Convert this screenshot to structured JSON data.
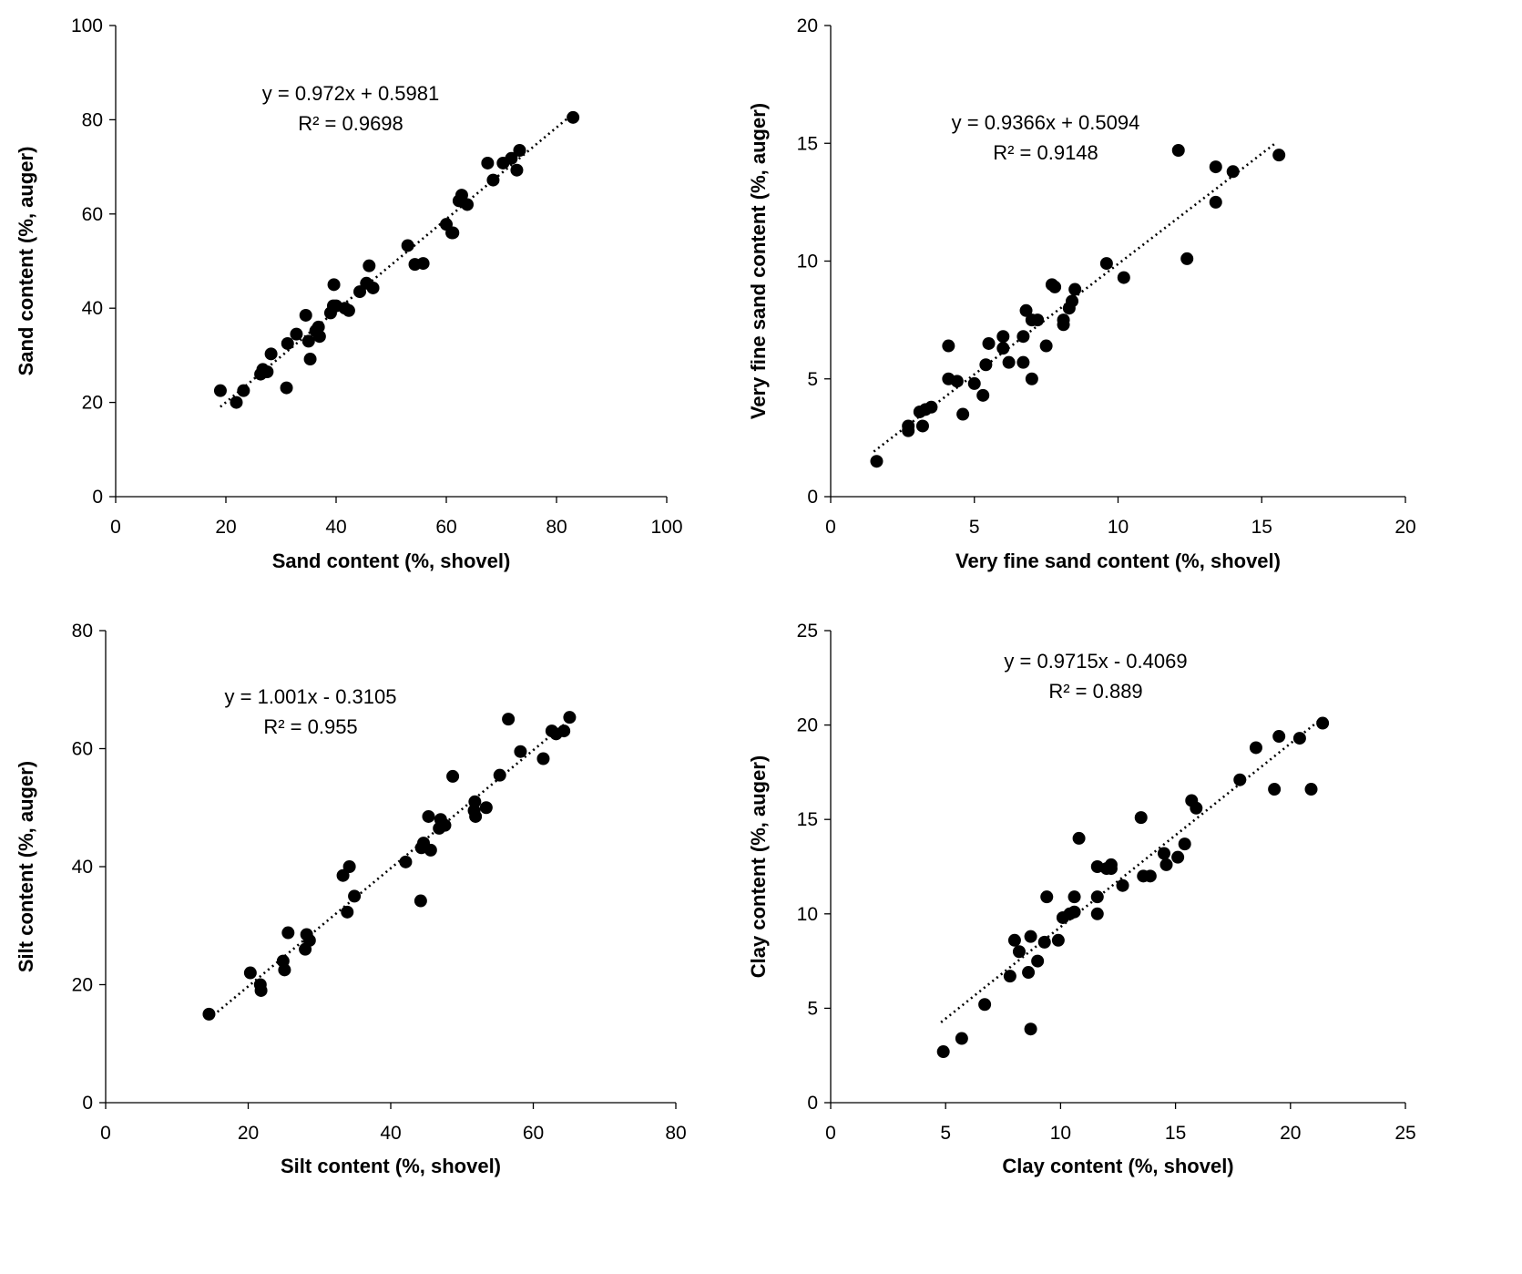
{
  "chart_data": [
    {
      "type": "scatter",
      "xlabel": "Sand content (%, shovel)",
      "ylabel": "Sand content (%, auger)",
      "xlim": [
        0,
        100
      ],
      "ylim": [
        0,
        100
      ],
      "xticks": [
        0,
        20,
        40,
        60,
        80,
        100
      ],
      "yticks": [
        0,
        20,
        40,
        60,
        80,
        100
      ],
      "equation": "y = 0.972x + 0.5981",
      "r2": "R² = 0.9698",
      "trendline": {
        "slope": 0.972,
        "intercept": 0.5981,
        "x_range": [
          19,
          83
        ]
      },
      "points": [
        [
          19,
          22.5
        ],
        [
          21.9,
          20
        ],
        [
          23.2,
          22.5
        ],
        [
          26.3,
          26
        ],
        [
          26.7,
          27
        ],
        [
          27.5,
          26.5
        ],
        [
          28.2,
          30.3
        ],
        [
          31.2,
          32.5
        ],
        [
          31.0,
          23.1
        ],
        [
          32.8,
          34.5
        ],
        [
          34.5,
          38.5
        ],
        [
          35.0,
          33.0
        ],
        [
          35.3,
          29.2
        ],
        [
          36.3,
          35.2
        ],
        [
          37.0,
          34.0
        ],
        [
          36.8,
          36.0
        ],
        [
          39.5,
          40.5
        ],
        [
          39.0,
          39.0
        ],
        [
          40.0,
          40.5
        ],
        [
          39.6,
          45.0
        ],
        [
          41.6,
          40.0
        ],
        [
          42.3,
          39.5
        ],
        [
          44.3,
          43.5
        ],
        [
          45.5,
          45.3
        ],
        [
          46.0,
          49.0
        ],
        [
          46.7,
          44.3
        ],
        [
          53.0,
          53.3
        ],
        [
          54.3,
          49.3
        ],
        [
          55.8,
          49.5
        ],
        [
          60.0,
          57.8
        ],
        [
          61.0,
          56.0
        ],
        [
          61.2,
          56.0
        ],
        [
          62.3,
          62.8
        ],
        [
          62.8,
          64.0
        ],
        [
          63.8,
          62.0
        ],
        [
          67.5,
          70.8
        ],
        [
          68.5,
          67.2
        ],
        [
          70.3,
          70.8
        ],
        [
          71.8,
          71.8
        ],
        [
          72.8,
          69.3
        ],
        [
          73.3,
          73.5
        ],
        [
          83.0,
          80.5
        ]
      ]
    },
    {
      "type": "scatter",
      "xlabel": "Very fine sand content (%, shovel)",
      "ylabel": "Very fine sand content (%, auger)",
      "xlim": [
        0,
        20
      ],
      "ylim": [
        0,
        20
      ],
      "xticks": [
        0,
        5,
        10,
        15,
        20
      ],
      "yticks": [
        0,
        5,
        10,
        15,
        20
      ],
      "equation": "y = 0.9366x + 0.5094",
      "r2": "R² = 0.9148",
      "trendline": {
        "slope": 0.9366,
        "intercept": 0.5094,
        "x_range": [
          1.5,
          15.5
        ]
      },
      "points": [
        [
          1.6,
          1.5
        ],
        [
          2.7,
          2.8
        ],
        [
          2.7,
          3.0
        ],
        [
          3.1,
          3.6
        ],
        [
          3.2,
          3.0
        ],
        [
          3.3,
          3.7
        ],
        [
          3.5,
          3.8
        ],
        [
          4.1,
          6.4
        ],
        [
          4.1,
          5.0
        ],
        [
          4.4,
          4.9
        ],
        [
          4.6,
          3.5
        ],
        [
          5.0,
          4.8
        ],
        [
          5.3,
          4.3
        ],
        [
          5.4,
          5.6
        ],
        [
          5.5,
          6.5
        ],
        [
          6.0,
          6.3
        ],
        [
          6.0,
          6.8
        ],
        [
          6.2,
          5.7
        ],
        [
          6.7,
          6.8
        ],
        [
          6.7,
          5.7
        ],
        [
          6.8,
          7.9
        ],
        [
          7.0,
          5.0
        ],
        [
          7.0,
          7.5
        ],
        [
          7.2,
          7.5
        ],
        [
          7.5,
          6.4
        ],
        [
          7.7,
          9.0
        ],
        [
          7.8,
          8.9
        ],
        [
          8.1,
          7.3
        ],
        [
          8.1,
          7.5
        ],
        [
          8.3,
          8.0
        ],
        [
          8.4,
          8.3
        ],
        [
          8.5,
          8.8
        ],
        [
          9.6,
          9.9
        ],
        [
          10.2,
          9.3
        ],
        [
          12.1,
          14.7
        ],
        [
          12.4,
          10.1
        ],
        [
          13.4,
          14.0
        ],
        [
          13.4,
          12.5
        ],
        [
          14.0,
          13.8
        ],
        [
          15.6,
          14.5
        ]
      ]
    },
    {
      "type": "scatter",
      "xlabel": "Silt content (%, shovel)",
      "ylabel": "Silt content (%, auger)",
      "xlim": [
        0,
        80
      ],
      "ylim": [
        0,
        80
      ],
      "xticks": [
        0,
        20,
        40,
        60,
        80
      ],
      "yticks": [
        0,
        20,
        40,
        60,
        80
      ],
      "equation": "y = 1.001x - 0.3105",
      "r2": "R² = 0.955",
      "trendline": {
        "slope": 1.001,
        "intercept": -0.3105,
        "x_range": [
          14.5,
          65
        ]
      },
      "points": [
        [
          14.5,
          15.0
        ],
        [
          20.3,
          22.0
        ],
        [
          21.7,
          20.0
        ],
        [
          21.8,
          19.0
        ],
        [
          24.9,
          24.0
        ],
        [
          25.1,
          22.5
        ],
        [
          25.6,
          28.8
        ],
        [
          28.0,
          26.0
        ],
        [
          28.2,
          28.5
        ],
        [
          28.6,
          27.5
        ],
        [
          33.3,
          38.5
        ],
        [
          33.9,
          32.3
        ],
        [
          34.2,
          40.0
        ],
        [
          34.9,
          35.0
        ],
        [
          42.1,
          40.8
        ],
        [
          44.2,
          34.2
        ],
        [
          44.3,
          43.2
        ],
        [
          44.6,
          44.0
        ],
        [
          45.3,
          48.5
        ],
        [
          45.6,
          42.8
        ],
        [
          46.8,
          46.5
        ],
        [
          47.0,
          48.0
        ],
        [
          47.6,
          47.0
        ],
        [
          48.7,
          55.3
        ],
        [
          51.7,
          49.5
        ],
        [
          51.8,
          51.0
        ],
        [
          51.9,
          48.5
        ],
        [
          53.4,
          50.0
        ],
        [
          55.3,
          55.5
        ],
        [
          56.5,
          65.0
        ],
        [
          58.2,
          59.5
        ],
        [
          61.4,
          58.3
        ],
        [
          62.6,
          63.0
        ],
        [
          63.2,
          62.5
        ],
        [
          64.3,
          63.0
        ],
        [
          65.1,
          65.3
        ]
      ]
    },
    {
      "type": "scatter",
      "xlabel": "Clay content (%, shovel)",
      "ylabel": "Clay content (%, auger)",
      "xlim": [
        0,
        25
      ],
      "ylim": [
        0,
        25
      ],
      "xticks": [
        0,
        5,
        10,
        15,
        20,
        25
      ],
      "yticks": [
        0,
        5,
        10,
        15,
        20,
        25
      ],
      "equation": "y = 0.9715x - 0.4069",
      "r2": "R² = 0.889",
      "trendline": {
        "slope": 0.9715,
        "intercept": -0.4069,
        "x_range": [
          4.8,
          21.3
        ]
      },
      "points": [
        [
          4.9,
          2.7
        ],
        [
          5.7,
          3.4
        ],
        [
          6.7,
          5.2
        ],
        [
          7.8,
          6.7
        ],
        [
          8.0,
          8.6
        ],
        [
          8.2,
          8.0
        ],
        [
          8.6,
          6.9
        ],
        [
          8.7,
          3.9
        ],
        [
          8.7,
          8.8
        ],
        [
          9.0,
          7.5
        ],
        [
          9.3,
          8.5
        ],
        [
          9.4,
          10.9
        ],
        [
          9.9,
          8.6
        ],
        [
          10.1,
          9.8
        ],
        [
          10.4,
          10.0
        ],
        [
          10.6,
          10.1
        ],
        [
          10.6,
          10.9
        ],
        [
          10.8,
          14.0
        ],
        [
          11.6,
          12.5
        ],
        [
          11.6,
          10.9
        ],
        [
          11.6,
          10.0
        ],
        [
          12.0,
          12.4
        ],
        [
          12.2,
          12.6
        ],
        [
          12.2,
          12.4
        ],
        [
          12.7,
          11.5
        ],
        [
          13.5,
          15.1
        ],
        [
          13.6,
          12.0
        ],
        [
          13.9,
          12.0
        ],
        [
          14.5,
          13.2
        ],
        [
          14.6,
          12.6
        ],
        [
          15.1,
          13.0
        ],
        [
          15.4,
          13.7
        ],
        [
          15.7,
          16.0
        ],
        [
          15.9,
          15.6
        ],
        [
          17.8,
          17.1
        ],
        [
          18.5,
          18.8
        ],
        [
          19.3,
          16.6
        ],
        [
          19.5,
          19.4
        ],
        [
          20.4,
          19.3
        ],
        [
          20.9,
          16.6
        ],
        [
          21.4,
          20.1
        ]
      ]
    }
  ]
}
